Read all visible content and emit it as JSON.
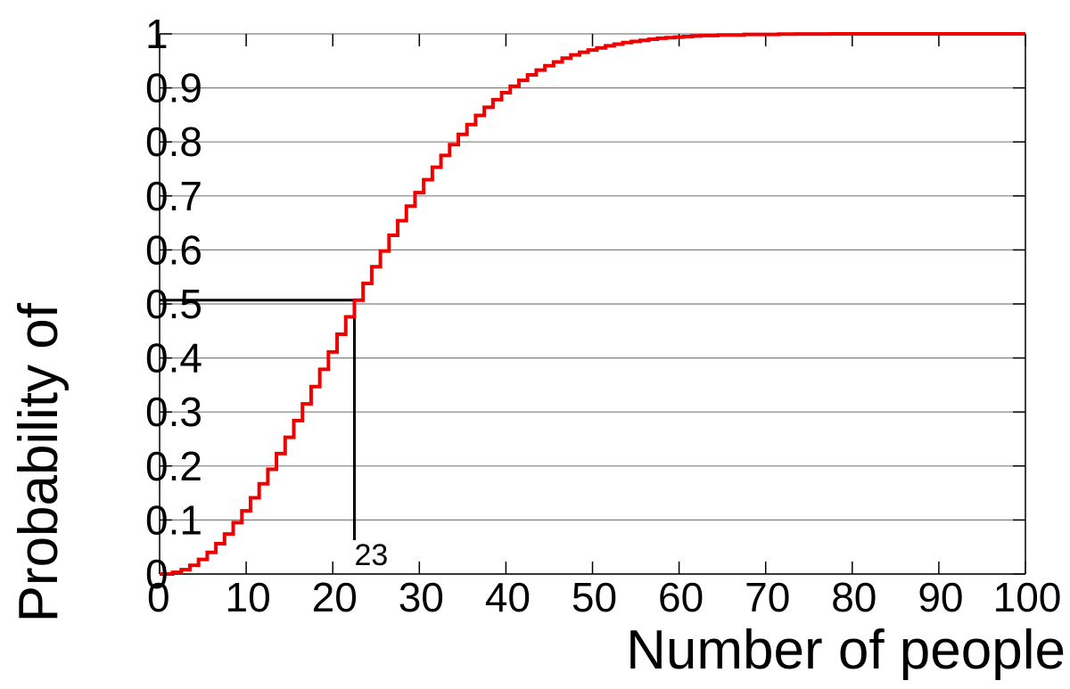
{
  "chart_data": {
    "type": "line",
    "title": "",
    "xlabel": "Number of people",
    "ylabel": "Probability of",
    "xlim": [
      0,
      100
    ],
    "ylim": [
      0,
      1
    ],
    "grid": true,
    "x_ticks": [
      "0",
      "10",
      "20",
      "30",
      "40",
      "50",
      "60",
      "70",
      "80",
      "90",
      "100"
    ],
    "y_ticks": [
      "0",
      "0.1",
      "0.2",
      "0.3",
      "0.4",
      "0.5",
      "0.6",
      "0.7",
      "0.8",
      "0.9",
      "1"
    ],
    "series": [
      {
        "color": "#ee0000",
        "style": "step",
        "x": [
          0,
          1,
          2,
          3,
          4,
          5,
          6,
          7,
          8,
          9,
          10,
          11,
          12,
          13,
          14,
          15,
          16,
          17,
          18,
          19,
          20,
          21,
          22,
          23,
          24,
          25,
          26,
          27,
          28,
          29,
          30,
          31,
          32,
          33,
          34,
          35,
          36,
          37,
          38,
          39,
          40,
          41,
          42,
          43,
          44,
          45,
          46,
          47,
          48,
          49,
          50,
          51,
          52,
          53,
          54,
          55,
          56,
          57,
          58,
          59,
          60,
          61,
          62,
          63,
          64,
          65,
          66,
          67,
          68,
          69,
          70,
          71,
          72,
          73,
          74,
          75,
          76,
          77,
          78,
          79,
          80,
          81,
          82,
          83,
          84,
          85,
          86,
          87,
          88,
          89,
          90,
          91,
          92,
          93,
          94,
          95,
          96,
          97,
          98,
          99,
          100
        ],
        "y": [
          0,
          0,
          0.003,
          0.008,
          0.016,
          0.027,
          0.04,
          0.056,
          0.074,
          0.095,
          0.117,
          0.141,
          0.167,
          0.194,
          0.223,
          0.253,
          0.284,
          0.315,
          0.347,
          0.379,
          0.411,
          0.444,
          0.476,
          0.507,
          0.538,
          0.569,
          0.598,
          0.627,
          0.654,
          0.681,
          0.706,
          0.73,
          0.753,
          0.775,
          0.795,
          0.814,
          0.832,
          0.849,
          0.864,
          0.878,
          0.891,
          0.903,
          0.914,
          0.924,
          0.933,
          0.941,
          0.948,
          0.955,
          0.961,
          0.966,
          0.97,
          0.974,
          0.978,
          0.981,
          0.984,
          0.986,
          0.988,
          0.99,
          0.992,
          0.993,
          0.994,
          0.995,
          0.996,
          0.997,
          0.997,
          0.998,
          0.998,
          0.998,
          0.999,
          0.999,
          0.999,
          0.999,
          0.9995,
          0.9996,
          0.9997,
          0.9997,
          0.9998,
          0.9998,
          0.9999,
          0.9999,
          0.9999,
          0.9999,
          1,
          1,
          1,
          1,
          1,
          1,
          1,
          1,
          1,
          1,
          1,
          1,
          1,
          1,
          1,
          1,
          1,
          1,
          1
        ]
      }
    ],
    "annotations": [
      {
        "text": "23",
        "x": 23,
        "y": 0.507
      }
    ]
  }
}
